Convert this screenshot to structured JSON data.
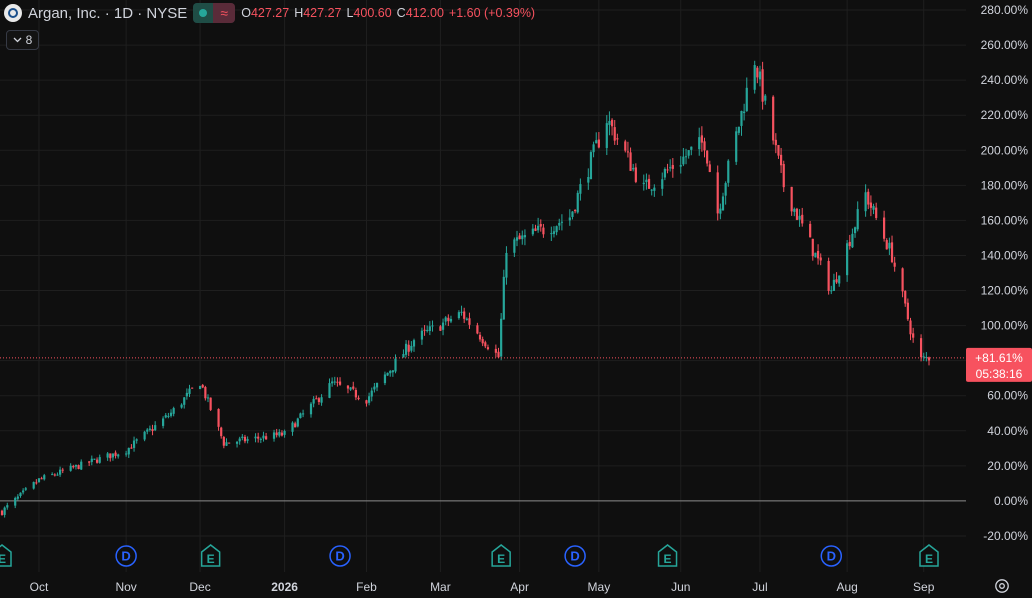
{
  "legend": {
    "symbol_title": "Argan, Inc. · 1D · NYSE",
    "ohlc": {
      "open_label": "O",
      "open": "427.27",
      "high_label": "H",
      "high": "427.27",
      "low_label": "L",
      "low": "400.60",
      "close_label": "C",
      "close": "412.00",
      "change": "+1.60 (+0.39%)"
    },
    "indicators_count": "8"
  },
  "price_tag": {
    "percent": "+81.61%",
    "countdown": "05:38:16"
  },
  "colors": {
    "up": "#26a69a",
    "down": "#f7525f",
    "background": "#0f0f0f",
    "grid": "#1f1f1f",
    "text": "#d1d4dc",
    "event_blue": "#2962ff",
    "event_green": "#26a69a"
  },
  "chart_data": {
    "type": "candlestick",
    "scale": "percent",
    "ylim": [
      -25,
      285
    ],
    "y_ticks": [
      "280.00%",
      "260.00%",
      "240.00%",
      "220.00%",
      "200.00%",
      "180.00%",
      "160.00%",
      "140.00%",
      "120.00%",
      "100.00%",
      "80.00%",
      "60.00%",
      "40.00%",
      "20.00%",
      "0.00%",
      "-20.00%"
    ],
    "y_tick_values": [
      280,
      260,
      240,
      220,
      200,
      180,
      160,
      140,
      120,
      100,
      80,
      60,
      40,
      20,
      0,
      -20
    ],
    "x_range": [
      "2025-09-17",
      "2026-09-03"
    ],
    "x_ticks": [
      {
        "label": "Oct",
        "date": "2025-10-01"
      },
      {
        "label": "Nov",
        "date": "2025-11-03"
      },
      {
        "label": "Dec",
        "date": "2025-12-01"
      },
      {
        "label": "2026",
        "date": "2026-01-02"
      },
      {
        "label": "Feb",
        "date": "2026-02-02"
      },
      {
        "label": "Mar",
        "date": "2026-03-02"
      },
      {
        "label": "Apr",
        "date": "2026-04-01"
      },
      {
        "label": "May",
        "date": "2026-05-01"
      },
      {
        "label": "Jun",
        "date": "2026-06-01"
      },
      {
        "label": "Jul",
        "date": "2026-07-01"
      },
      {
        "label": "Aug",
        "date": "2026-08-03"
      },
      {
        "label": "Sep",
        "date": "2026-09-01"
      }
    ],
    "close_path": [
      {
        "date": "2025-09-17",
        "close": -6
      },
      {
        "date": "2025-10-01",
        "close": 12
      },
      {
        "date": "2025-10-20",
        "close": 22
      },
      {
        "date": "2025-11-03",
        "close": 29
      },
      {
        "date": "2025-11-20",
        "close": 50
      },
      {
        "date": "2025-12-01",
        "close": 68
      },
      {
        "date": "2025-12-10",
        "close": 33
      },
      {
        "date": "2026-01-02",
        "close": 38
      },
      {
        "date": "2026-01-20",
        "close": 67
      },
      {
        "date": "2026-02-02",
        "close": 58
      },
      {
        "date": "2026-02-20",
        "close": 92
      },
      {
        "date": "2026-03-10",
        "close": 107
      },
      {
        "date": "2026-03-24",
        "close": 82
      },
      {
        "date": "2026-03-27",
        "close": 145
      },
      {
        "date": "2026-04-20",
        "close": 162
      },
      {
        "date": "2026-05-04",
        "close": 218
      },
      {
        "date": "2026-05-18",
        "close": 178
      },
      {
        "date": "2026-06-10",
        "close": 205
      },
      {
        "date": "2026-06-15",
        "close": 165
      },
      {
        "date": "2026-06-29",
        "close": 252
      },
      {
        "date": "2026-07-10",
        "close": 180
      },
      {
        "date": "2026-07-28",
        "close": 120
      },
      {
        "date": "2026-08-10",
        "close": 175
      },
      {
        "date": "2026-08-20",
        "close": 140
      },
      {
        "date": "2026-08-30",
        "close": 80
      },
      {
        "date": "2026-09-03",
        "close": 82
      }
    ],
    "last_value": 81.61,
    "events": [
      {
        "type": "E",
        "date": "2025-09-17"
      },
      {
        "type": "D",
        "date": "2025-11-03"
      },
      {
        "type": "E",
        "date": "2025-12-05"
      },
      {
        "type": "D",
        "date": "2026-01-23"
      },
      {
        "type": "E",
        "date": "2026-03-25"
      },
      {
        "type": "D",
        "date": "2026-04-22"
      },
      {
        "type": "E",
        "date": "2026-05-27"
      },
      {
        "type": "D",
        "date": "2026-07-28"
      },
      {
        "type": "E",
        "date": "2026-09-03"
      }
    ]
  }
}
